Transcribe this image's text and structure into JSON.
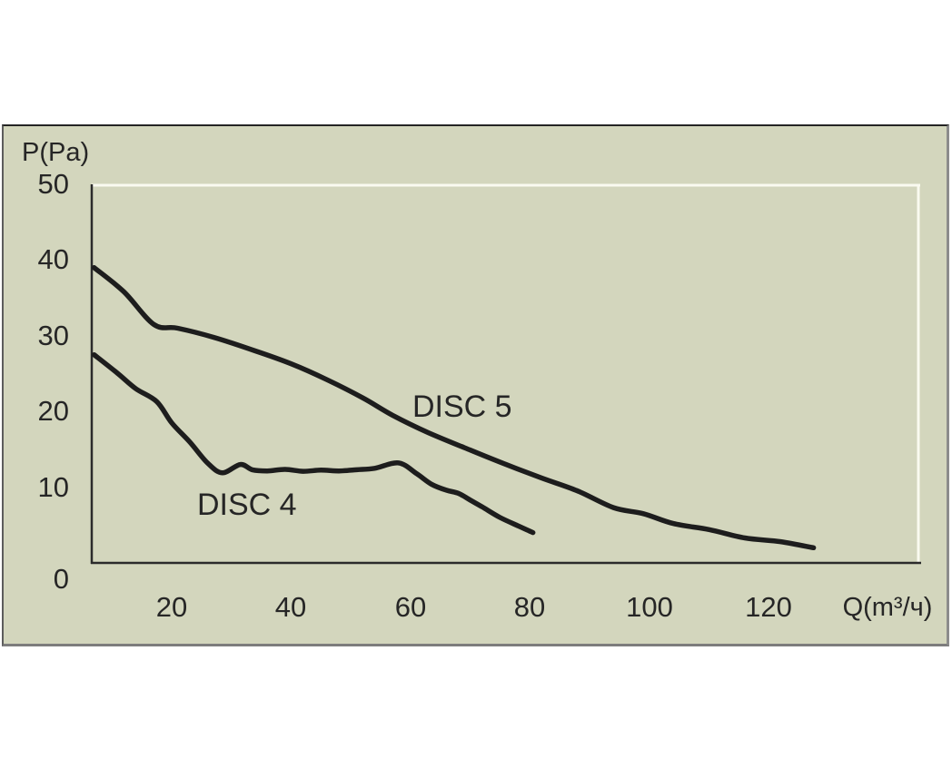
{
  "figure": {
    "y_axis_title": "P(Pa)",
    "x_axis_title": "Q(m³/ч)",
    "y_ticks": [
      "50",
      "40",
      "30",
      "20",
      "10",
      "0"
    ],
    "x_ticks": [
      "20",
      "40",
      "60",
      "80",
      "100",
      "120"
    ],
    "curve_labels": {
      "disc5": "DISC 5",
      "disc4": "DISC 4"
    }
  },
  "colors": {
    "panel_background": "#d3d6bd",
    "curve": "#1d1d1d",
    "text": "#262626",
    "axis_dark": "#2b2b2b",
    "plot_border_light": "#fafaf0"
  },
  "chart_data": {
    "type": "line",
    "title": "",
    "xlabel": "Q(m³/ч)",
    "ylabel": "P(Pa)",
    "xlim": [
      6.5,
      145
    ],
    "ylim": [
      0,
      50
    ],
    "x_tick_values": [
      20,
      40,
      60,
      80,
      100,
      120
    ],
    "y_tick_values": [
      0,
      10,
      20,
      30,
      40,
      50
    ],
    "grid": false,
    "legend_position": "inline-labels-on-plot",
    "series": [
      {
        "name": "DISC 5",
        "points": [
          [
            7,
            39
          ],
          [
            12,
            35.8
          ],
          [
            17,
            31.5
          ],
          [
            21,
            31
          ],
          [
            27,
            29.8
          ],
          [
            34,
            28
          ],
          [
            40,
            26.3
          ],
          [
            46,
            24.2
          ],
          [
            52,
            21.8
          ],
          [
            57,
            19.5
          ],
          [
            63,
            17.2
          ],
          [
            70,
            14.9
          ],
          [
            76,
            13
          ],
          [
            82,
            11.2
          ],
          [
            88,
            9.5
          ],
          [
            94,
            7.3
          ],
          [
            99,
            6.5
          ],
          [
            104,
            5.2
          ],
          [
            110,
            4.4
          ],
          [
            116,
            3.3
          ],
          [
            122,
            2.8
          ],
          [
            127.5,
            2
          ]
        ]
      },
      {
        "name": "DISC 4",
        "points": [
          [
            7,
            27.5
          ],
          [
            11,
            25
          ],
          [
            14,
            23
          ],
          [
            17.5,
            21.3
          ],
          [
            20,
            18.5
          ],
          [
            23,
            16
          ],
          [
            26,
            13.2
          ],
          [
            28.5,
            11.9
          ],
          [
            31.5,
            13
          ],
          [
            33.5,
            12.3
          ],
          [
            36,
            12.15
          ],
          [
            39,
            12.35
          ],
          [
            42,
            12.1
          ],
          [
            45,
            12.25
          ],
          [
            48,
            12.15
          ],
          [
            51,
            12.3
          ],
          [
            54,
            12.5
          ],
          [
            58,
            13.2
          ],
          [
            61,
            11.8
          ],
          [
            63.5,
            10.4
          ],
          [
            66,
            9.6
          ],
          [
            68,
            9.2
          ],
          [
            70,
            8.3
          ],
          [
            72,
            7.4
          ],
          [
            75,
            6
          ],
          [
            78,
            4.9
          ],
          [
            80.5,
            4
          ]
        ]
      }
    ]
  }
}
